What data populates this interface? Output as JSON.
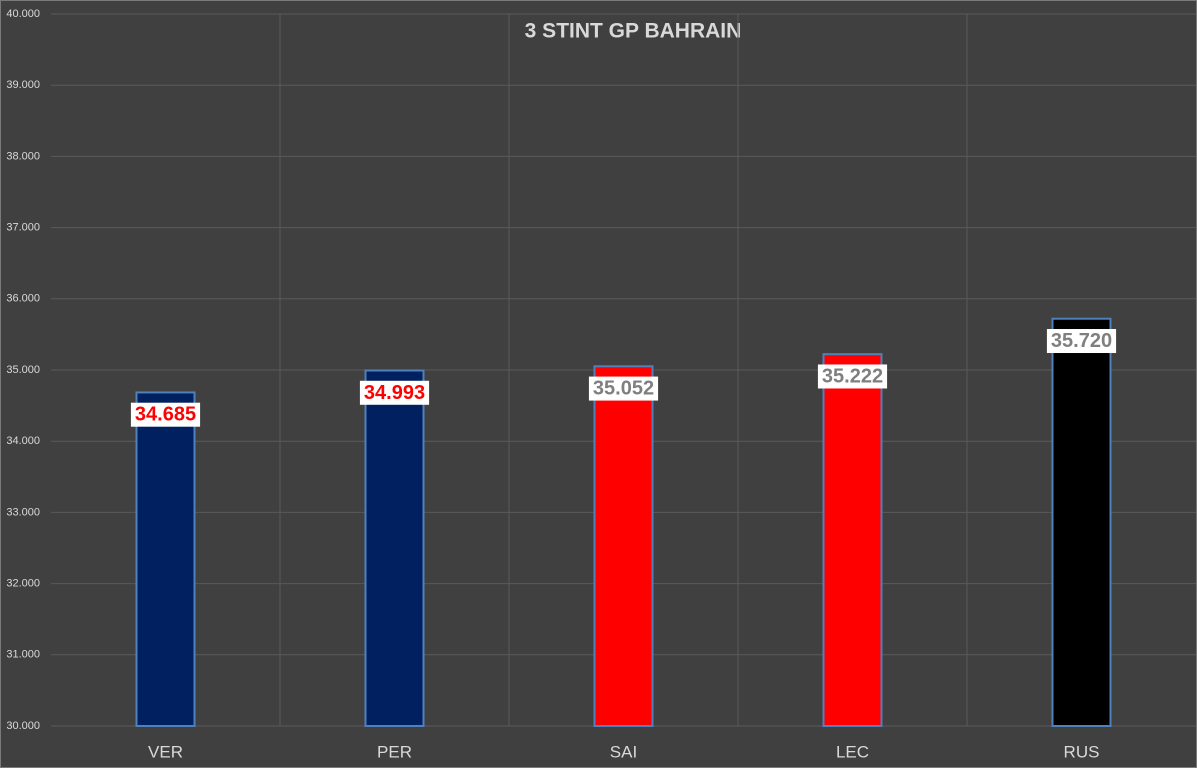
{
  "chart_data": {
    "type": "bar",
    "title": "3 STINT GP BAHRAIN",
    "categories": [
      "VER",
      "PER",
      "SAI",
      "LEC",
      "RUS"
    ],
    "values": [
      34.685,
      34.993,
      35.052,
      35.222,
      35.72
    ],
    "value_labels": [
      "34.685",
      "34.993",
      "35.052",
      "35.222",
      "35.720"
    ],
    "colors": [
      "#002060",
      "#002060",
      "#ff0000",
      "#ff0000",
      "#000000"
    ],
    "value_label_colors": [
      "#ff0000",
      "#ff0000",
      "#7f7f7f",
      "#7f7f7f",
      "#7f7f7f"
    ],
    "ylim": [
      30,
      40
    ],
    "yticks": [
      {
        "value": 30,
        "label": "30.000"
      },
      {
        "value": 31,
        "label": "31.000"
      },
      {
        "value": 32,
        "label": "32.000"
      },
      {
        "value": 33,
        "label": "33.000"
      },
      {
        "value": 34,
        "label": "34.000"
      },
      {
        "value": 35,
        "label": "35.000"
      },
      {
        "value": 36,
        "label": "36.000"
      },
      {
        "value": 37,
        "label": "37.000"
      },
      {
        "value": 38,
        "label": "38.000"
      },
      {
        "value": 39,
        "label": "39.000"
      },
      {
        "value": 40,
        "label": "40.000"
      }
    ],
    "grid": true
  }
}
